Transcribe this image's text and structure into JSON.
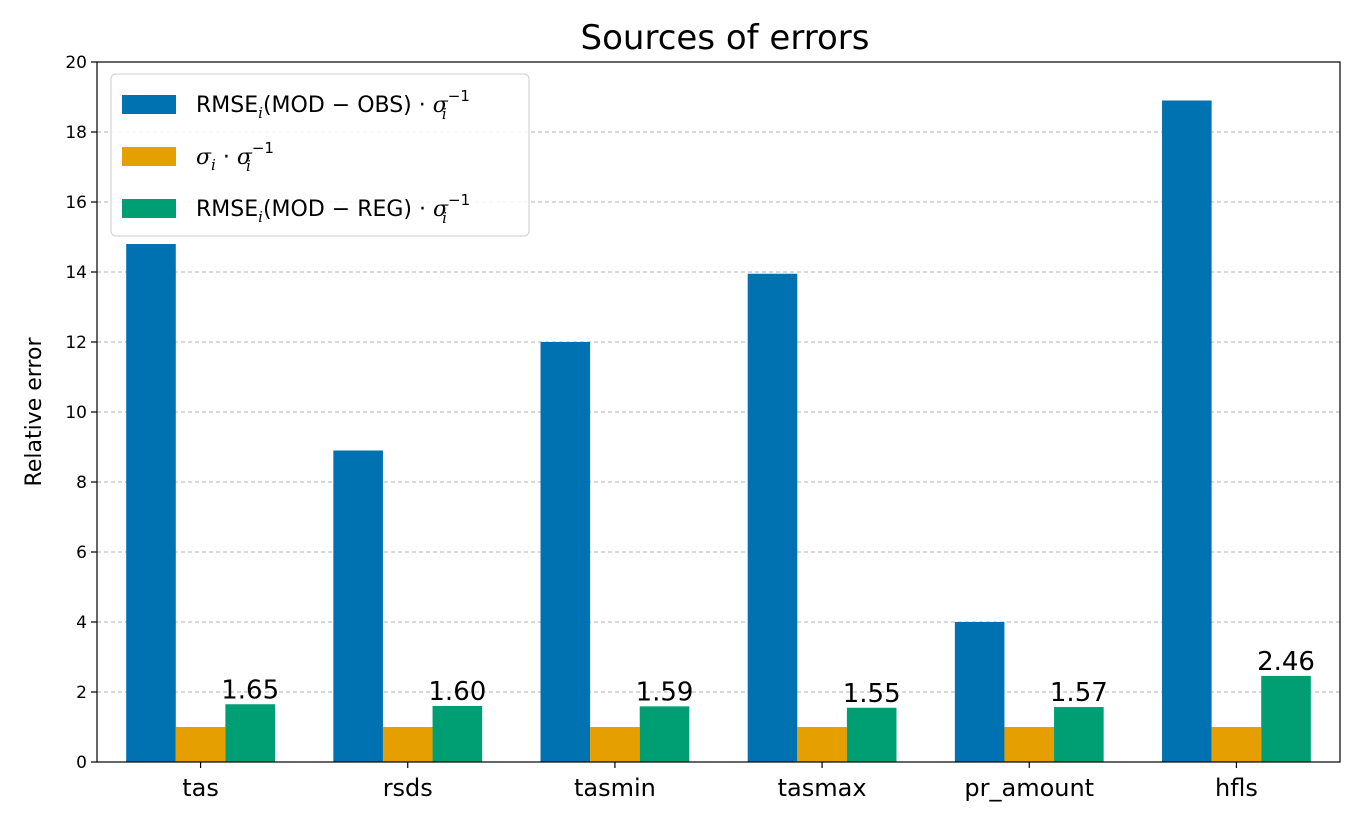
{
  "chart_data": {
    "type": "bar",
    "title": "Sources of errors",
    "xlabel": "",
    "ylabel": "Relative error",
    "ylim": [
      0,
      20
    ],
    "yticks": [
      0,
      2,
      4,
      6,
      8,
      10,
      12,
      14,
      16,
      18,
      20
    ],
    "grid": "horizontal dashed",
    "legend_position": "top-left",
    "categories": [
      "tas",
      "rsds",
      "tasmin",
      "tasmax",
      "pr_amount",
      "hfls"
    ],
    "series": [
      {
        "id": "obs",
        "legend": {
          "prefix": "RMSE",
          "sub": "i",
          "middle": "(MOD − OBS) · ",
          "sym": "σ",
          "sym_sub": "i",
          "sym_sup": "−1"
        },
        "color": "#0072B2",
        "values": [
          14.8,
          8.9,
          12.0,
          13.95,
          4.0,
          18.9
        ]
      },
      {
        "id": "sigma",
        "legend": {
          "prefix": "σ",
          "sub": "i",
          "middle": " · ",
          "sym": "σ",
          "sym_sub": "i",
          "sym_sup": "−1"
        },
        "color": "#E69F00",
        "values": [
          1.0,
          1.0,
          1.0,
          1.0,
          1.0,
          1.0
        ]
      },
      {
        "id": "reg",
        "legend": {
          "prefix": "RMSE",
          "sub": "i",
          "middle": "(MOD − REG) · ",
          "sym": "σ",
          "sym_sub": "i",
          "sym_sup": "−1"
        },
        "color": "#009E73",
        "values": [
          1.65,
          1.6,
          1.59,
          1.55,
          1.57,
          2.46
        ],
        "data_labels": [
          "1.65",
          "1.60",
          "1.59",
          "1.55",
          "1.57",
          "2.46"
        ]
      }
    ]
  }
}
